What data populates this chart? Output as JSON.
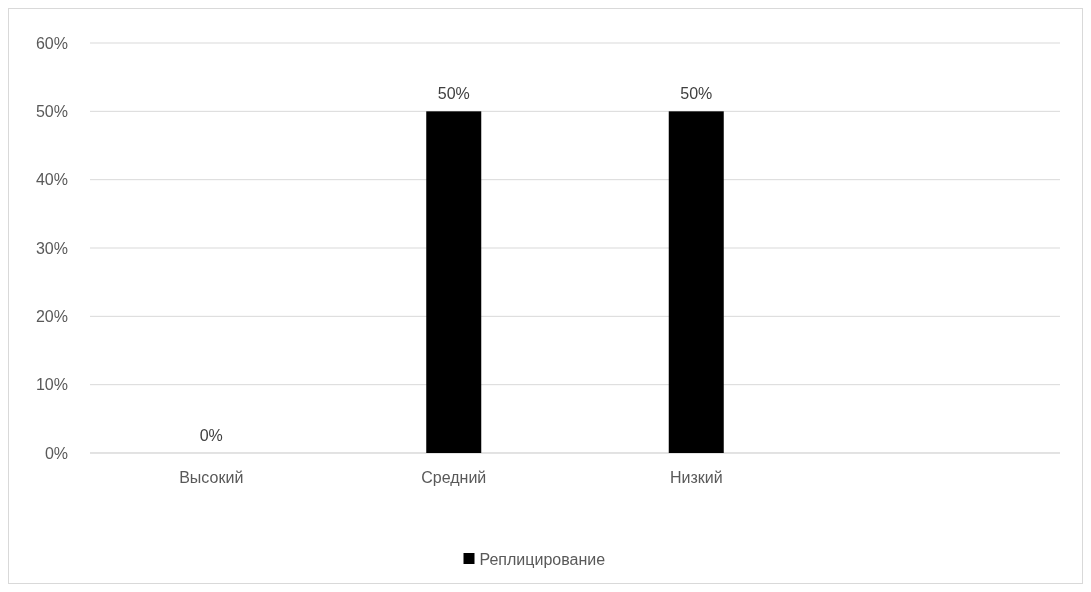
{
  "chart_data": {
    "type": "bar",
    "categories": [
      "Высокий",
      "Средний",
      "Низкий",
      null
    ],
    "series": [
      {
        "name": "Реплицирование",
        "color": "#000000",
        "values": [
          0,
          50,
          50,
          null
        ],
        "value_labels": [
          "0%",
          "50%",
          "50%",
          null
        ]
      }
    ],
    "ylim": [
      0,
      60
    ],
    "yticks": [
      {
        "value": 0,
        "label": "0%"
      },
      {
        "value": 10,
        "label": "10%"
      },
      {
        "value": 20,
        "label": "20%"
      },
      {
        "value": 30,
        "label": "30%"
      },
      {
        "value": 40,
        "label": "40%"
      },
      {
        "value": 50,
        "label": "50%"
      },
      {
        "value": 60,
        "label": "60%"
      }
    ],
    "grid": "y",
    "legend": "bottom"
  }
}
